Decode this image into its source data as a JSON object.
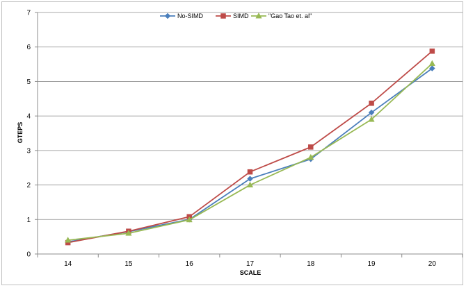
{
  "chart_data": {
    "type": "line",
    "title": "",
    "xlabel": "SCALE",
    "ylabel": "GTEPS",
    "categories": [
      "14",
      "15",
      "16",
      "17",
      "18",
      "19",
      "20"
    ],
    "ylim": [
      0,
      7
    ],
    "yticks": [
      0,
      1,
      2,
      3,
      4,
      5,
      6,
      7
    ],
    "grid": "horizontal",
    "legend_position": "top-center",
    "series": [
      {
        "name": "No-SIMD",
        "color": "#4a7ebb",
        "marker": "diamond",
        "values": [
          0.35,
          0.65,
          1.0,
          2.18,
          2.75,
          4.1,
          5.38
        ]
      },
      {
        "name": "SIMD",
        "color": "#be4b48",
        "marker": "square",
        "values": [
          0.33,
          0.66,
          1.08,
          2.38,
          3.1,
          4.37,
          5.88
        ]
      },
      {
        "name": "\"Gao Tao et. al\"",
        "color": "#98b954",
        "marker": "triangle",
        "values": [
          0.4,
          0.6,
          0.99,
          2.0,
          2.8,
          3.9,
          5.52
        ]
      }
    ]
  }
}
